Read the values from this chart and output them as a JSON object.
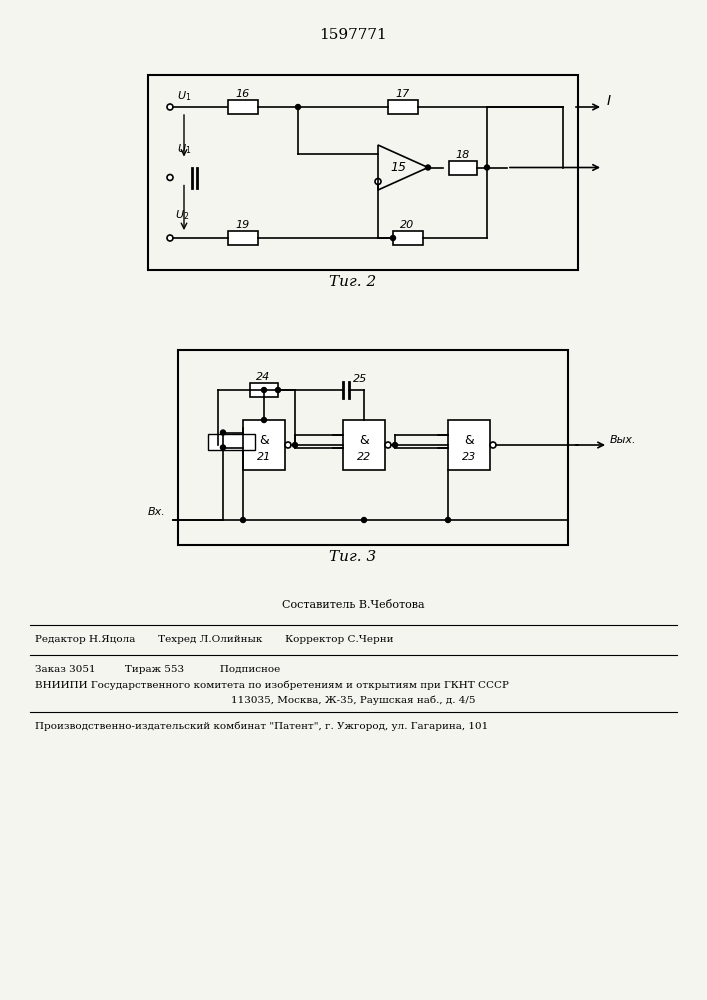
{
  "title": "1597771",
  "fig2_label": "Τиг. 2",
  "fig3_label": "Τиг. 3",
  "footer_lines": [
    "Составитель В.Чеботова",
    "Редактор Н.Яцола       Техред Л.Олийнык       Корректор С.Черни",
    "Заказ 3051         Тираж 553           Подписное",
    "ВНИИПИ Государственного комитета по изобретениям и открытиям при ГКНТ СССР",
    "113035, Москва, Ж-35, Раушская наб., д. 4/5",
    "Производственно-издательский комбинат \"Патент\", г. Ужгород, ул. Гагарина, 101"
  ],
  "bg_color": "#f5f5f0",
  "line_color": "#000000",
  "box_color": "#ffffff"
}
